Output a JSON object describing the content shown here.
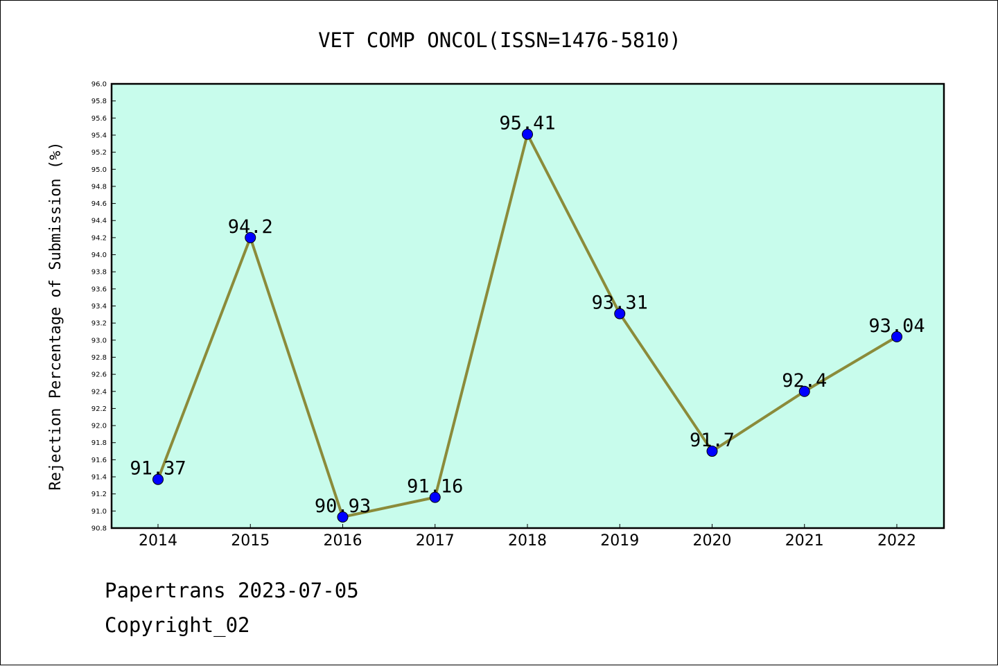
{
  "chart_data": {
    "type": "line",
    "title": "VET COMP ONCOL(ISSN=1476-5810)",
    "xlabel": "",
    "ylabel": "Rejection Percentage of Submission (%)",
    "categories": [
      "2014",
      "2015",
      "2016",
      "2017",
      "2018",
      "2019",
      "2020",
      "2021",
      "2022"
    ],
    "series": [
      {
        "values": [
          91.37,
          94.2,
          90.93,
          91.16,
          95.41,
          93.31,
          91.7,
          92.4,
          93.04
        ],
        "labels": [
          "91.37",
          "94.2",
          "90.93",
          "91.16",
          "95.41",
          "93.31",
          "91.7",
          "92.4",
          "93.04"
        ],
        "line_color": "#8b8b3a",
        "marker_color": "#0000ff"
      }
    ],
    "ylim": [
      90.8,
      96.0
    ],
    "yticks": [
      "90.8",
      "91.0",
      "91.2",
      "91.4",
      "91.6",
      "91.8",
      "92.0",
      "92.2",
      "92.4",
      "92.6",
      "92.8",
      "93.0",
      "93.2",
      "93.4",
      "93.6",
      "93.8",
      "94.0",
      "94.2",
      "94.4",
      "94.6",
      "94.8",
      "95.0",
      "95.2",
      "95.4",
      "95.6",
      "95.8",
      "96.0"
    ],
    "grid": false,
    "plot_background": "#c8fcec"
  },
  "footer": {
    "date_line": "Papertrans 2023-07-05",
    "copyright_line": "Copyright_02"
  }
}
